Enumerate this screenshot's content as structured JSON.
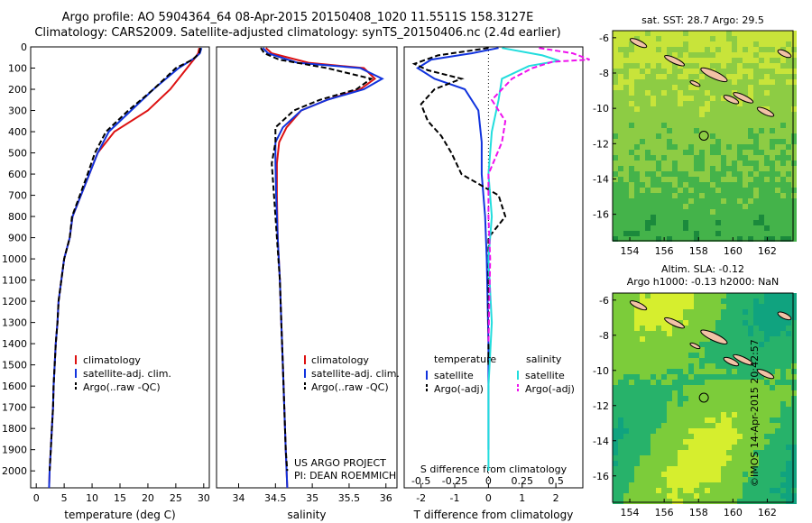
{
  "header": {
    "line1": "Argo profile: AO 5904364_64 08-Apr-2015 20150408_1020 11.5511S 158.3127E",
    "line2": "Climatology: CARS2009. Satellite-adjusted climatology: synTS_20150406.nc (2.4d earlier)"
  },
  "colors": {
    "climatology": "#dd1111",
    "satellite": "#1133dd",
    "argo": "#000000",
    "sat_salinity": "#22dddd",
    "argo_salinity": "#ee11ee"
  },
  "chart_data": [
    {
      "id": "temperature",
      "type": "line",
      "xlabel": "temperature (deg C)",
      "ylabel": "",
      "xlim": [
        -1,
        31
      ],
      "ylim": [
        2080,
        0
      ],
      "xticks": [
        0,
        5,
        10,
        15,
        20,
        25,
        30
      ],
      "yticks": [
        0,
        100,
        200,
        300,
        400,
        500,
        600,
        700,
        800,
        900,
        1000,
        1100,
        1200,
        1300,
        1400,
        1500,
        1600,
        1700,
        1800,
        1900,
        2000
      ],
      "legend": [
        "climatology",
        "satellite-adj. clim.",
        "Argo(..raw -QC)"
      ],
      "series": [
        {
          "name": "climatology",
          "color": "#dd1111",
          "points": [
            [
              29.2,
              5
            ],
            [
              29,
              30
            ],
            [
              28.5,
              50
            ],
            [
              27,
              100
            ],
            [
              24,
              200
            ],
            [
              20,
              300
            ],
            [
              14,
              400
            ],
            [
              11,
              500
            ],
            [
              9.5,
              600
            ],
            [
              8,
              700
            ],
            [
              6.5,
              800
            ],
            [
              6,
              900
            ],
            [
              5,
              1000
            ],
            [
              4.5,
              1100
            ],
            [
              4,
              1200
            ],
            [
              3.8,
              1300
            ],
            [
              3.5,
              1400
            ],
            [
              3.3,
              1500
            ],
            [
              3.1,
              1600
            ],
            [
              3,
              1700
            ],
            [
              2.8,
              1800
            ],
            [
              2.6,
              1900
            ],
            [
              2.4,
              2000
            ],
            [
              2.3,
              2080
            ]
          ]
        },
        {
          "name": "satellite-adj. clim.",
          "color": "#1133dd",
          "points": [
            [
              29.6,
              5
            ],
            [
              29.3,
              30
            ],
            [
              28.5,
              50
            ],
            [
              25.5,
              100
            ],
            [
              21,
              200
            ],
            [
              17,
              300
            ],
            [
              13,
              400
            ],
            [
              11,
              500
            ],
            [
              9.5,
              600
            ],
            [
              8,
              700
            ],
            [
              6.5,
              800
            ],
            [
              6,
              900
            ],
            [
              5,
              1000
            ],
            [
              4.5,
              1100
            ],
            [
              4,
              1200
            ],
            [
              3.8,
              1300
            ],
            [
              3.5,
              1400
            ],
            [
              3.3,
              1500
            ],
            [
              3.1,
              1600
            ],
            [
              3,
              1700
            ],
            [
              2.8,
              1800
            ],
            [
              2.6,
              1900
            ],
            [
              2.4,
              2000
            ],
            [
              2.3,
              2080
            ]
          ]
        },
        {
          "name": "Argo(..raw -QC)",
          "color": "#000000",
          "points": [
            [
              29.4,
              5
            ],
            [
              29.2,
              30
            ],
            [
              28,
              60
            ],
            [
              25,
              100
            ],
            [
              21,
              200
            ],
            [
              16.5,
              300
            ],
            [
              12.5,
              400
            ],
            [
              10.5,
              500
            ],
            [
              9.2,
              600
            ],
            [
              7.8,
              700
            ],
            [
              6.4,
              800
            ],
            [
              6,
              900
            ],
            [
              5,
              1000
            ],
            [
              4.5,
              1100
            ],
            [
              4,
              1200
            ],
            [
              3.8,
              1300
            ],
            [
              3.5,
              1400
            ],
            [
              3.3,
              1500
            ],
            [
              3.1,
              1600
            ],
            [
              3,
              1700
            ],
            [
              2.8,
              1800
            ],
            [
              2.6,
              1900
            ],
            [
              2.4,
              2000
            ]
          ]
        }
      ]
    },
    {
      "id": "salinity",
      "type": "line",
      "xlabel": "salinity",
      "xlim": [
        33.7,
        36.15
      ],
      "ylim": [
        2080,
        0
      ],
      "xticks": [
        34,
        34.5,
        35,
        35.5,
        36
      ],
      "xticklabels": [
        "34",
        "34.5",
        "35",
        "35.5",
        "36"
      ],
      "legend": [
        "climatology",
        "satellite-adj. clim.",
        "Argo(..raw -QC)"
      ],
      "annotation": [
        "US ARGO PROJECT",
        "PI: DEAN ROEMMICH"
      ],
      "series": [
        {
          "name": "climatology",
          "color": "#dd1111",
          "points": [
            [
              34.37,
              5
            ],
            [
              34.45,
              30
            ],
            [
              34.95,
              75
            ],
            [
              35.7,
              100
            ],
            [
              35.85,
              150
            ],
            [
              35.65,
              200
            ],
            [
              35.2,
              250
            ],
            [
              34.85,
              300
            ],
            [
              34.65,
              380
            ],
            [
              34.55,
              450
            ],
            [
              34.52,
              550
            ],
            [
              34.52,
              700
            ],
            [
              34.53,
              900
            ],
            [
              34.56,
              1100
            ],
            [
              34.58,
              1300
            ],
            [
              34.6,
              1500
            ],
            [
              34.62,
              1700
            ],
            [
              34.64,
              1900
            ],
            [
              34.66,
              2080
            ]
          ]
        },
        {
          "name": "satellite-adj. clim.",
          "color": "#1133dd",
          "points": [
            [
              34.33,
              5
            ],
            [
              34.4,
              30
            ],
            [
              34.8,
              75
            ],
            [
              35.65,
              100
            ],
            [
              35.95,
              150
            ],
            [
              35.7,
              200
            ],
            [
              35.2,
              250
            ],
            [
              34.85,
              300
            ],
            [
              34.6,
              380
            ],
            [
              34.5,
              450
            ],
            [
              34.5,
              550
            ],
            [
              34.51,
              700
            ],
            [
              34.53,
              900
            ],
            [
              34.56,
              1100
            ],
            [
              34.58,
              1300
            ],
            [
              34.6,
              1500
            ],
            [
              34.62,
              1700
            ],
            [
              34.64,
              1900
            ],
            [
              34.66,
              2080
            ]
          ]
        },
        {
          "name": "Argo(..raw -QC)",
          "color": "#000000",
          "points": [
            [
              34.3,
              5
            ],
            [
              34.35,
              30
            ],
            [
              34.55,
              60
            ],
            [
              35.2,
              100
            ],
            [
              35.8,
              150
            ],
            [
              35.6,
              200
            ],
            [
              35.1,
              250
            ],
            [
              34.75,
              300
            ],
            [
              34.5,
              380
            ],
            [
              34.5,
              450
            ],
            [
              34.45,
              550
            ],
            [
              34.48,
              700
            ],
            [
              34.52,
              900
            ],
            [
              34.56,
              1100
            ],
            [
              34.58,
              1300
            ],
            [
              34.6,
              1500
            ],
            [
              34.62,
              1700
            ],
            [
              34.64,
              1900
            ],
            [
              34.66,
              2000
            ]
          ]
        }
      ]
    },
    {
      "id": "difference",
      "type": "line",
      "xlabel_top": "S difference from climatology",
      "xlabel": "T difference from climatology",
      "xlim_T": [
        -2.5,
        2.8
      ],
      "xticks_T": [
        -2,
        -1,
        0,
        1,
        2
      ],
      "xticks_S": [
        -0.5,
        -0.25,
        0,
        0.25,
        0.5
      ],
      "xticklabels_S": [
        "-0.5",
        "-0.25",
        "0",
        "0.25",
        "0.5"
      ],
      "ylim": [
        2080,
        0
      ],
      "legend_temperature": {
        "title": "temperature",
        "entries": [
          "satellite",
          "Argo(-adj)"
        ]
      },
      "legend_salinity": {
        "title": "salinity",
        "entries": [
          "satellite",
          "Argo(-adj)"
        ]
      },
      "series": [
        {
          "name": "temperature satellite",
          "color": "#1133dd",
          "points": [
            [
              0.3,
              5
            ],
            [
              -0.5,
              30
            ],
            [
              -1.7,
              60
            ],
            [
              -2.1,
              100
            ],
            [
              -1.6,
              150
            ],
            [
              -0.7,
              200
            ],
            [
              -0.3,
              300
            ],
            [
              -0.2,
              450
            ],
            [
              -0.2,
              600
            ],
            [
              -0.15,
              700
            ],
            [
              -0.1,
              800
            ],
            [
              -0.05,
              1000
            ],
            [
              0,
              1400
            ],
            [
              0,
              1900
            ]
          ]
        },
        {
          "name": "temperature Argo(-adj)",
          "color": "#000000",
          "points": [
            [
              0,
              5
            ],
            [
              -1.5,
              40
            ],
            [
              -2.2,
              80
            ],
            [
              -1.8,
              110
            ],
            [
              -0.8,
              150
            ],
            [
              -1.6,
              200
            ],
            [
              -2.0,
              270
            ],
            [
              -1.8,
              350
            ],
            [
              -1.4,
              420
            ],
            [
              -1.1,
              500
            ],
            [
              -0.8,
              600
            ],
            [
              0.3,
              700
            ],
            [
              0.5,
              800
            ],
            [
              0,
              900
            ],
            [
              0,
              1500
            ]
          ]
        },
        {
          "name": "salinity satellite",
          "color": "#22dddd",
          "points": [
            [
              0.4,
              5
            ],
            [
              1.6,
              40
            ],
            [
              2.1,
              65
            ],
            [
              1.2,
              90
            ],
            [
              0.4,
              150
            ],
            [
              0.3,
              250
            ],
            [
              0.1,
              400
            ],
            [
              0,
              600
            ],
            [
              0.1,
              800
            ],
            [
              0,
              1000
            ],
            [
              0.1,
              1300
            ],
            [
              0,
              1600
            ],
            [
              0,
              2000
            ]
          ]
        },
        {
          "name": "salinity Argo(-adj)",
          "color": "#ee11ee",
          "points": [
            [
              1.5,
              5
            ],
            [
              2.5,
              30
            ],
            [
              3.0,
              60
            ],
            [
              1.9,
              70
            ],
            [
              1.3,
              100
            ],
            [
              0.7,
              150
            ],
            [
              0.1,
              250
            ],
            [
              0.5,
              350
            ],
            [
              0.4,
              450
            ],
            [
              0,
              600
            ],
            [
              0,
              800
            ],
            [
              0.05,
              1000
            ],
            [
              0,
              1400
            ]
          ]
        }
      ]
    }
  ],
  "maps": {
    "sst": {
      "title": "sat. SST: 28.7  Argo: 29.5",
      "colormap": [
        "#1b8a3c",
        "#44b34a",
        "#8dcc44",
        "#c8e43a"
      ]
    },
    "sla": {
      "title_line1": "Altim. SLA: -0.12",
      "title_line2": "Argo h1000: -0.13 h2000: NaN",
      "colormap": [
        "#10a37f",
        "#27b26a",
        "#7ccc3a",
        "#d6ee2e"
      ]
    },
    "xticks": [
      "154",
      "156",
      "158",
      "160",
      "162"
    ],
    "yticks": [
      "-6",
      "-8",
      "-10",
      "-12",
      "-14",
      "-16"
    ],
    "argo_location": {
      "lon": 158.31,
      "lat": -11.55
    }
  },
  "credit": "©IMOS 14-Apr-2015 20:42:57"
}
